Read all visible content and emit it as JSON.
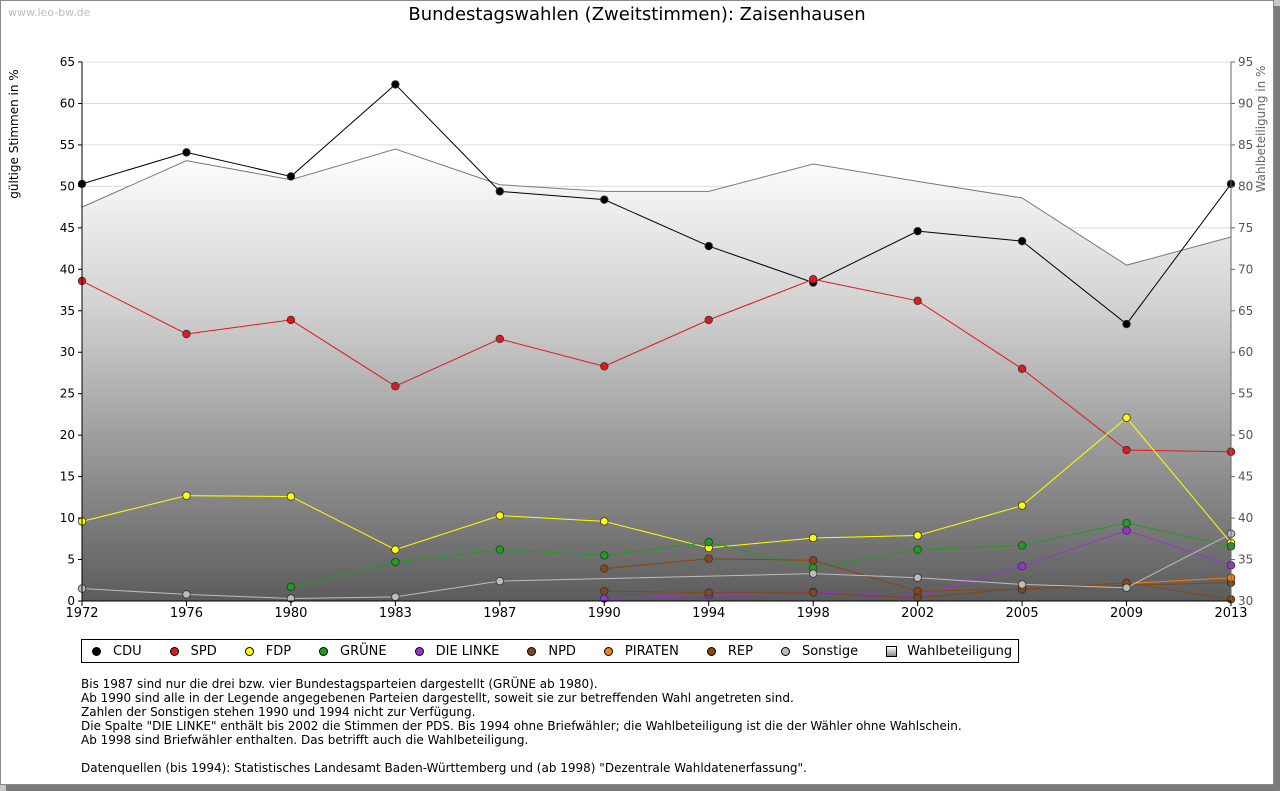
{
  "watermark": "www.leo-bw.de",
  "chart_data": {
    "type": "line",
    "title": "Bundestagswahlen (Zweitstimmen): Zaisenhausen",
    "ylabel": "gültige Stimmen in %",
    "y2label": "Wahlbeteiligung in %",
    "ylim": [
      0,
      65
    ],
    "y2lim": [
      30,
      95
    ],
    "yticks": [
      "0",
      "5",
      "10",
      "15",
      "20",
      "25",
      "30",
      "35",
      "40",
      "45",
      "50",
      "55",
      "60",
      "65"
    ],
    "y2ticks": [
      "30",
      "35",
      "40",
      "45",
      "50",
      "55",
      "60",
      "65",
      "70",
      "75",
      "80",
      "85",
      "90",
      "95"
    ],
    "x": [
      "1972",
      "1976",
      "1980",
      "1983",
      "1987",
      "1990",
      "1994",
      "1998",
      "2002",
      "2005",
      "2009",
      "2013"
    ],
    "grid": true,
    "legend_position": "bottom",
    "series": [
      {
        "name": "CDU",
        "color": "#000000",
        "values": [
          50.3,
          54.1,
          51.2,
          62.3,
          49.4,
          48.4,
          42.8,
          38.4,
          44.6,
          43.4,
          33.4,
          50.3
        ]
      },
      {
        "name": "SPD",
        "color": "#e0191f",
        "values": [
          38.6,
          32.2,
          33.9,
          25.9,
          31.6,
          28.3,
          33.9,
          38.8,
          36.2,
          28.0,
          18.2,
          18.0
        ]
      },
      {
        "name": "FDP",
        "color": "#ffff00",
        "values": [
          9.6,
          12.7,
          12.6,
          6.2,
          10.3,
          9.6,
          6.4,
          7.6,
          7.9,
          11.5,
          22.1,
          7.0
        ]
      },
      {
        "name": "GRÜNE",
        "color": "#1e9e1e",
        "values": [
          null,
          null,
          1.7,
          4.7,
          6.2,
          5.5,
          7.1,
          4.0,
          6.2,
          6.7,
          9.4,
          6.6
        ]
      },
      {
        "name": "DIE LINKE",
        "color": "#9933cc",
        "values": [
          null,
          null,
          null,
          null,
          null,
          0.3,
          0.7,
          1.1,
          0.5,
          4.2,
          8.5,
          4.3
        ]
      },
      {
        "name": "NPD",
        "color": "#7a4a1e",
        "values": [
          null,
          null,
          null,
          null,
          null,
          1.2,
          1.0,
          1.0,
          0.4,
          1.5,
          1.9,
          2.2
        ]
      },
      {
        "name": "PIRATEN",
        "color": "#f08010",
        "values": [
          null,
          null,
          null,
          null,
          null,
          null,
          null,
          null,
          null,
          null,
          2.1,
          2.8
        ]
      },
      {
        "name": "REP",
        "color": "#8b4513",
        "values": [
          null,
          null,
          null,
          null,
          null,
          3.9,
          5.1,
          4.9,
          1.2,
          1.4,
          2.2,
          0.2
        ]
      },
      {
        "name": "Sonstige",
        "color": "#bcbcbc",
        "values": [
          1.5,
          0.8,
          0.3,
          0.5,
          2.4,
          null,
          null,
          3.3,
          2.8,
          2.0,
          1.6,
          8.1
        ]
      }
    ],
    "wahlbeteiligung": {
      "name": "Wahlbeteiligung",
      "values": [
        77.5,
        83.1,
        80.8,
        84.5,
        80.2,
        79.4,
        79.4,
        82.7,
        80.6,
        78.6,
        70.5,
        73.9
      ]
    }
  },
  "legend": {
    "items": [
      {
        "label": "CDU",
        "color": "#000000",
        "shape": "circle"
      },
      {
        "label": "SPD",
        "color": "#e0191f",
        "shape": "circle"
      },
      {
        "label": "FDP",
        "color": "#ffff00",
        "shape": "circle"
      },
      {
        "label": "GRÜNE",
        "color": "#1e9e1e",
        "shape": "circle"
      },
      {
        "label": "DIE LINKE",
        "color": "#9933cc",
        "shape": "circle"
      },
      {
        "label": "NPD",
        "color": "#7a4a1e",
        "shape": "circle"
      },
      {
        "label": "PIRATEN",
        "color": "#f08010",
        "shape": "circle"
      },
      {
        "label": "REP",
        "color": "#8b4513",
        "shape": "circle"
      },
      {
        "label": "Sonstige",
        "color": "#bcbcbc",
        "shape": "circle"
      },
      {
        "label": "Wahlbeteiligung",
        "color": "#cccccc",
        "shape": "square"
      }
    ]
  },
  "notes": {
    "line1": "Bis 1987 sind nur die drei bzw. vier Bundestagsparteien dargestellt (GRÜNE ab 1980).",
    "line2": "Ab 1990 sind alle in der Legende angegebenen Parteien dargestellt, soweit sie zur betreffenden Wahl angetreten sind.",
    "line3": "Zahlen der Sonstigen stehen 1990 und 1994 nicht zur Verfügung.",
    "line4": "Die Spalte \"DIE LINKE\" enthält bis 2002 die Stimmen der PDS. Bis 1994 ohne Briefwähler; die Wahlbeteiligung ist die der Wähler ohne Wahlschein.",
    "line5": "Ab 1998 sind Briefwähler enthalten. Das betrifft auch die Wahlbeteiligung.",
    "line6": "Datenquellen (bis 1994): Statistisches Landesamt Baden-Württemberg und (ab 1998) \"Dezentrale Wahldatenerfassung\"."
  }
}
